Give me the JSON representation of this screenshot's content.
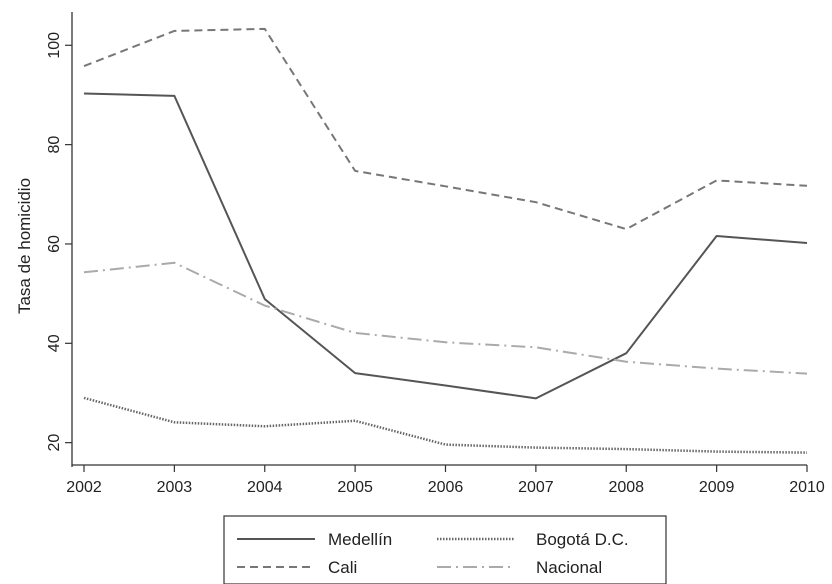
{
  "chart_data": {
    "type": "line",
    "title": "",
    "xlabel": "",
    "ylabel": "Tasa de homicidio",
    "x": [
      2002,
      2003,
      2004,
      2005,
      2006,
      2007,
      2008,
      2009,
      2010
    ],
    "xticks": [
      "2002",
      "2003",
      "2004",
      "2005",
      "2006",
      "2007",
      "2008",
      "2009",
      "2010"
    ],
    "yticks": [
      "20",
      "40",
      "60",
      "80",
      "100"
    ],
    "xlim": [
      2002,
      2010
    ],
    "ylim": [
      15.5,
      106.7
    ],
    "grid": false,
    "legend_position": "bottom",
    "series": [
      {
        "name": "Medellín",
        "style": "solid",
        "color": "#555555",
        "values": [
          90.3,
          89.8,
          48.9,
          34.0,
          31.5,
          28.9,
          38.0,
          61.6,
          60.2
        ]
      },
      {
        "name": "Bogotá D.C.",
        "style": "dotted",
        "color": "#666666",
        "values": [
          29.0,
          24.1,
          23.3,
          24.4,
          19.6,
          19.0,
          18.7,
          18.2,
          18.0
        ]
      },
      {
        "name": "Cali",
        "style": "dashed",
        "color": "#777777",
        "values": [
          95.8,
          102.9,
          103.3,
          74.7,
          71.6,
          68.4,
          63.0,
          72.8,
          71.7
        ]
      },
      {
        "name": "Nacional",
        "style": "dashdot",
        "color": "#aaaaaa",
        "values": [
          54.3,
          56.2,
          47.6,
          42.1,
          40.2,
          39.2,
          36.3,
          34.9,
          33.9
        ]
      }
    ]
  }
}
